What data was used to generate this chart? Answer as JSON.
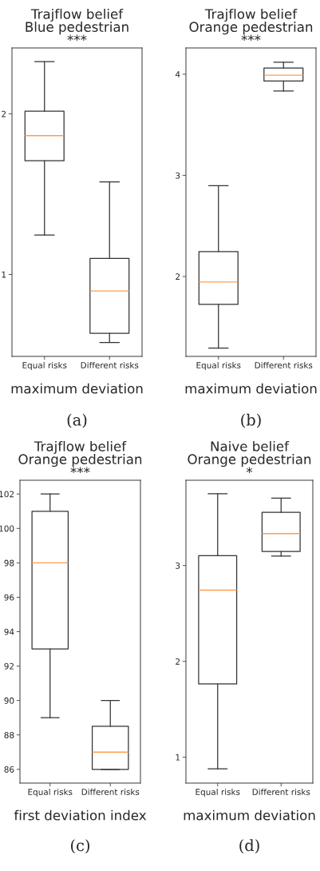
{
  "chart_data": [
    {
      "type": "box",
      "title": "Trajflow belief\nBlue pedestrian\n***",
      "categories": [
        "Equal risks",
        "Different risks"
      ],
      "xlabel": "maximum deviation",
      "annotations": [
        "(a)"
      ],
      "ylim": [
        0.49,
        2.41
      ],
      "yticks": [
        1,
        2
      ],
      "boxes": [
        {
          "low": 1.245,
          "q1": 1.708,
          "median": 1.864,
          "q3": 2.016,
          "high": 2.325
        },
        {
          "low": 0.577,
          "q1": 0.634,
          "median": 0.897,
          "q3": 1.1,
          "high": 1.576
        }
      ]
    },
    {
      "type": "box",
      "title": "Trajflow belief\nOrange pedestrian\n***",
      "categories": [
        "Equal risks",
        "Different risks"
      ],
      "xlabel": "maximum deviation",
      "annotations": [
        "(b)"
      ],
      "ylim": [
        1.21,
        4.26
      ],
      "yticks": [
        2,
        3,
        4
      ],
      "boxes": [
        {
          "low": 1.292,
          "q1": 1.724,
          "median": 1.946,
          "q3": 2.247,
          "high": 2.898
        },
        {
          "low": 3.834,
          "q1": 3.933,
          "median": 3.99,
          "q3": 4.061,
          "high": 4.119
        }
      ]
    },
    {
      "type": "box",
      "title": "Trajflow belief\nOrange pedestrian\n***",
      "categories": [
        "Equal risks",
        "Different risks"
      ],
      "xlabel": "first deviation index",
      "annotations": [
        "(c)"
      ],
      "ylim": [
        85.2,
        102.8
      ],
      "yticks": [
        86,
        88,
        90,
        92,
        94,
        96,
        98,
        100,
        102
      ],
      "boxes": [
        {
          "low": 89,
          "q1": 93,
          "median": 98,
          "q3": 101,
          "high": 102
        },
        {
          "low": 86,
          "q1": 86,
          "median": 87,
          "q3": 88.5,
          "high": 90
        }
      ]
    },
    {
      "type": "box",
      "title": "Naive belief\nOrange pedestrian\n*",
      "categories": [
        "Equal risks",
        "Different risks"
      ],
      "xlabel": "maximum deviation",
      "annotations": [
        "(d)"
      ],
      "ylim": [
        0.73,
        3.89
      ],
      "yticks": [
        1,
        2,
        3
      ],
      "boxes": [
        {
          "low": 0.879,
          "q1": 1.764,
          "median": 2.744,
          "q3": 3.103,
          "high": 3.75
        },
        {
          "low": 3.098,
          "q1": 3.147,
          "median": 3.333,
          "q3": 3.555,
          "high": 3.704
        }
      ]
    }
  ]
}
